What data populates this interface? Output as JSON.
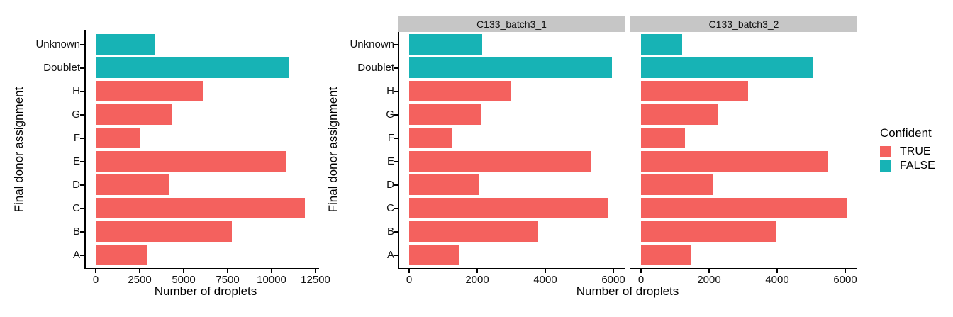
{
  "figure": {
    "background": "#FFFFFF",
    "ylabel": "Final donor assignment",
    "xlabel": "Number of droplets",
    "colors": {
      "true_bars": "#F4615E",
      "false_bars": "#17B3B5",
      "strip_background": "#C6C6C6",
      "axis": "#000000"
    },
    "legend": {
      "title": "Confident",
      "items": [
        {
          "label": "TRUE",
          "color_key": "true_bars"
        },
        {
          "label": "FALSE",
          "color_key": "false_bars"
        }
      ]
    }
  },
  "chart_data": [
    {
      "type": "bar",
      "orientation": "horizontal",
      "facet_label": "",
      "panel_note": "overall (left panel, no strip)",
      "categories": [
        "Unknown",
        "Doublet",
        "H",
        "G",
        "F",
        "E",
        "D",
        "C",
        "B",
        "A"
      ],
      "category_order": "top-to-bottom",
      "confident": [
        "FALSE",
        "FALSE",
        "TRUE",
        "TRUE",
        "TRUE",
        "TRUE",
        "TRUE",
        "TRUE",
        "TRUE",
        "TRUE"
      ],
      "values": [
        3350,
        10950,
        6100,
        4300,
        2550,
        10850,
        4150,
        11900,
        7750,
        2900
      ],
      "xlabel": "Number of droplets",
      "ylabel": "Final donor assignment",
      "xlim": [
        0,
        12500
      ],
      "xticks": [
        0,
        2500,
        5000,
        7500,
        10000,
        12500
      ],
      "grid": "off",
      "legend_position": "right"
    },
    {
      "type": "bar",
      "orientation": "horizontal",
      "facet_label": "C133_batch3_1",
      "categories": [
        "Unknown",
        "Doublet",
        "H",
        "G",
        "F",
        "E",
        "D",
        "C",
        "B",
        "A"
      ],
      "category_order": "top-to-bottom",
      "confident": [
        "FALSE",
        "FALSE",
        "TRUE",
        "TRUE",
        "TRUE",
        "TRUE",
        "TRUE",
        "TRUE",
        "TRUE",
        "TRUE"
      ],
      "values": [
        2150,
        5950,
        3000,
        2100,
        1250,
        5350,
        2050,
        5850,
        3800,
        1450
      ],
      "xlabel": "Number of droplets",
      "ylabel": "Final donor assignment",
      "xlim": [
        0,
        6350
      ],
      "xticks": [
        0,
        2000,
        4000,
        6000
      ],
      "grid": "off"
    },
    {
      "type": "bar",
      "orientation": "horizontal",
      "facet_label": "C133_batch3_2",
      "categories": [
        "Unknown",
        "Doublet",
        "H",
        "G",
        "F",
        "E",
        "D",
        "C",
        "B",
        "A"
      ],
      "category_order": "top-to-bottom",
      "confident": [
        "FALSE",
        "FALSE",
        "TRUE",
        "TRUE",
        "TRUE",
        "TRUE",
        "TRUE",
        "TRUE",
        "TRUE",
        "TRUE"
      ],
      "values": [
        1200,
        5050,
        3150,
        2250,
        1300,
        5500,
        2100,
        6050,
        3950,
        1450
      ],
      "xlabel": "Number of droplets",
      "ylabel": "Final donor assignment",
      "xlim": [
        0,
        6350
      ],
      "xticks": [
        0,
        2000,
        4000,
        6000
      ],
      "grid": "off"
    }
  ]
}
